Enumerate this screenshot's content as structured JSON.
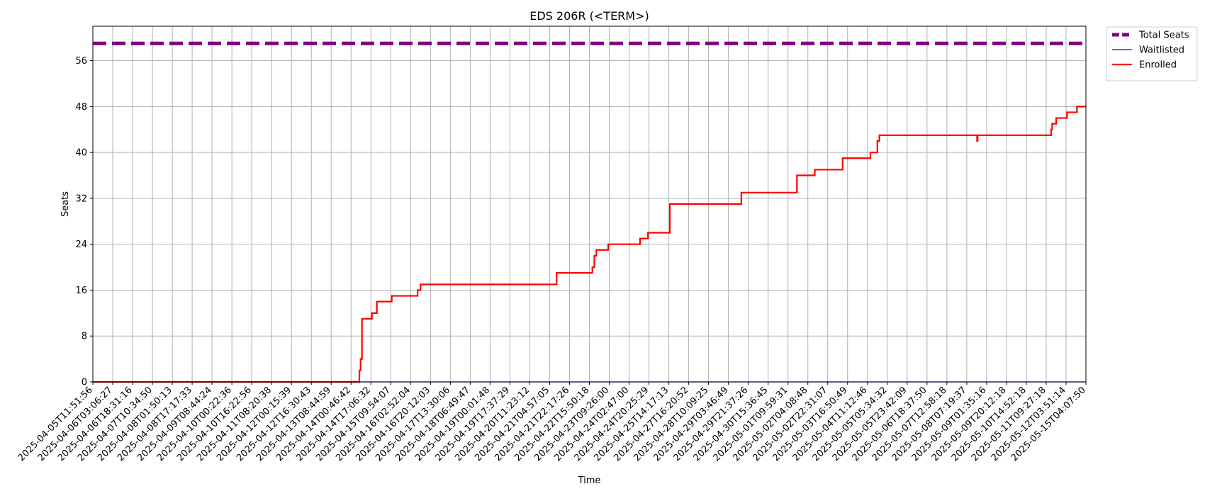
{
  "chart_data": {
    "type": "line",
    "title": "EDS 206R (<TERM>)",
    "xlabel": "Time",
    "ylabel": "Seats",
    "ylim": [
      0,
      62
    ],
    "yticks": [
      0,
      8,
      16,
      24,
      32,
      40,
      48,
      56
    ],
    "grid": true,
    "legend_position": "outside-top-right",
    "x_tick_labels": [
      "2025-04-05T11:51:56",
      "2025-04-06T03:06:27",
      "2025-04-06T18:31:16",
      "2025-04-07T10:34:50",
      "2025-04-08T01:50:13",
      "2025-04-08T17:17:33",
      "2025-04-09T08:44:24",
      "2025-04-10T00:22:36",
      "2025-04-10T16:22:56",
      "2025-04-11T08:20:38",
      "2025-04-12T00:15:39",
      "2025-04-12T16:30:43",
      "2025-04-13T08:44:59",
      "2025-04-14T00:46:42",
      "2025-04-14T17:06:32",
      "2025-04-15T09:54:07",
      "2025-04-16T02:52:04",
      "2025-04-16T20:12:03",
      "2025-04-17T13:30:06",
      "2025-04-18T06:49:47",
      "2025-04-19T00:01:48",
      "2025-04-19T17:37:29",
      "2025-04-20T11:23:12",
      "2025-04-21T04:57:05",
      "2025-04-21T22:17:26",
      "2025-04-22T15:50:18",
      "2025-04-23T09:26:00",
      "2025-04-24T02:47:00",
      "2025-04-24T20:25:29",
      "2025-04-25T14:17:13",
      "2025-04-27T16:20:52",
      "2025-04-28T10:09:25",
      "2025-04-29T03:46:49",
      "2025-04-29T21:37:26",
      "2025-04-30T15:36:45",
      "2025-05-01T09:59:31",
      "2025-05-02T04:08:48",
      "2025-05-02T22:31:07",
      "2025-05-03T16:50:49",
      "2025-05-04T11:12:46",
      "2025-05-05T05:34:32",
      "2025-05-05T23:42:09",
      "2025-05-06T18:37:50",
      "2025-05-07T12:58:18",
      "2025-05-08T07:19:37",
      "2025-05-09T01:35:16",
      "2025-05-09T20:12:18",
      "2025-05-10T14:52:18",
      "2025-05-11T09:27:18",
      "2025-05-12T03:51:14",
      "2025-05-15T04:07:50"
    ],
    "series": [
      {
        "name": "Total Seats",
        "color": "#800080",
        "style": "dashed",
        "points": [
          [
            0,
            59
          ],
          [
            50,
            59
          ]
        ]
      },
      {
        "name": "Waitlisted",
        "color": "#0000ff",
        "style": "solid",
        "points": [
          [
            0,
            0
          ],
          [
            50,
            0
          ]
        ]
      },
      {
        "name": "Enrolled",
        "color": "#ff0000",
        "style": "step",
        "points": [
          [
            0,
            0
          ],
          [
            13.4,
            0
          ],
          [
            13.42,
            2
          ],
          [
            13.48,
            4
          ],
          [
            13.55,
            11
          ],
          [
            14.0,
            11
          ],
          [
            14.05,
            12
          ],
          [
            14.2,
            12
          ],
          [
            14.3,
            14
          ],
          [
            15.0,
            14
          ],
          [
            15.05,
            15
          ],
          [
            16.3,
            15
          ],
          [
            16.35,
            16
          ],
          [
            16.5,
            17
          ],
          [
            23.3,
            17
          ],
          [
            23.35,
            19
          ],
          [
            25.1,
            19
          ],
          [
            25.15,
            20
          ],
          [
            25.25,
            22
          ],
          [
            25.35,
            23
          ],
          [
            25.9,
            23
          ],
          [
            25.95,
            24
          ],
          [
            27.5,
            24
          ],
          [
            27.55,
            25
          ],
          [
            27.9,
            25
          ],
          [
            27.95,
            26
          ],
          [
            29.0,
            26
          ],
          [
            29.05,
            31
          ],
          [
            32.6,
            31
          ],
          [
            32.65,
            33
          ],
          [
            35.4,
            33
          ],
          [
            35.45,
            36
          ],
          [
            36.3,
            36
          ],
          [
            36.35,
            37
          ],
          [
            37.7,
            37
          ],
          [
            37.75,
            39
          ],
          [
            39.1,
            39
          ],
          [
            39.15,
            40
          ],
          [
            39.4,
            40
          ],
          [
            39.5,
            42
          ],
          [
            39.6,
            43
          ],
          [
            44.5,
            43
          ],
          [
            44.52,
            42
          ],
          [
            44.55,
            43
          ],
          [
            48.2,
            43
          ],
          [
            48.25,
            44
          ],
          [
            48.3,
            45
          ],
          [
            48.5,
            46
          ],
          [
            49.0,
            46
          ],
          [
            49.05,
            47
          ],
          [
            49.5,
            47
          ],
          [
            49.55,
            48
          ],
          [
            50,
            48
          ]
        ]
      }
    ]
  }
}
